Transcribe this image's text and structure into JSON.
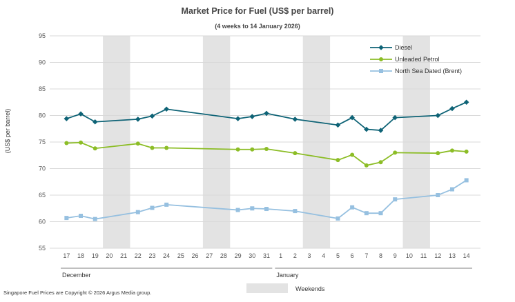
{
  "chart_data": {
    "type": "line",
    "title": "Market Price for Fuel (US$ per barrel)",
    "subtitle": "(4 weeks to 14 January 2026)",
    "ylabel": "(US$ per barrel)",
    "ylim": [
      55,
      95
    ],
    "yticks": [
      55,
      60,
      65,
      70,
      75,
      80,
      85,
      90,
      95
    ],
    "grid": true,
    "legend_position": "top-right",
    "categories": [
      "17",
      "18",
      "19",
      "20",
      "21",
      "22",
      "23",
      "24",
      "25",
      "26",
      "27",
      "28",
      "29",
      "30",
      "31",
      "1",
      "2",
      "3",
      "4",
      "5",
      "6",
      "7",
      "8",
      "9",
      "10",
      "11",
      "12",
      "13",
      "14"
    ],
    "months": [
      {
        "label": "December",
        "start": 0,
        "end": 14
      },
      {
        "label": "January",
        "start": 15,
        "end": 28
      }
    ],
    "weekend_bands": [
      [
        3,
        4
      ],
      [
        10,
        11
      ],
      [
        17,
        18
      ],
      [
        24,
        25
      ]
    ],
    "weekend_label": "Weekends",
    "series": [
      {
        "name": "Diesel",
        "color": "#0e6376",
        "marker": "diamond",
        "values": [
          79.4,
          80.3,
          78.8,
          null,
          null,
          79.3,
          79.9,
          81.2,
          null,
          null,
          null,
          null,
          79.4,
          79.8,
          80.4,
          null,
          79.3,
          null,
          null,
          78.2,
          79.6,
          77.4,
          77.2,
          79.6,
          null,
          null,
          80.0,
          81.3,
          82.5
        ]
      },
      {
        "name": "Unleaded Petrol",
        "color": "#8cbd26",
        "marker": "circle",
        "values": [
          74.8,
          74.9,
          73.8,
          null,
          null,
          74.7,
          73.9,
          73.9,
          null,
          null,
          null,
          null,
          73.6,
          73.6,
          73.7,
          null,
          72.9,
          null,
          null,
          71.6,
          72.6,
          70.6,
          71.2,
          73.0,
          null,
          null,
          72.9,
          73.4,
          73.2
        ]
      },
      {
        "name": "North Sea Dated (Brent)",
        "color": "#96c0e0",
        "marker": "square",
        "values": [
          60.7,
          61.1,
          60.5,
          null,
          null,
          61.8,
          62.6,
          63.2,
          null,
          null,
          null,
          null,
          62.2,
          62.5,
          62.4,
          null,
          62.0,
          null,
          null,
          60.6,
          62.7,
          61.6,
          61.6,
          64.2,
          null,
          null,
          65.0,
          66.1,
          67.8
        ]
      }
    ]
  },
  "footer": {
    "copyright": "Singapore Fuel Prices are Copyright © 2026 Argus Media group."
  }
}
